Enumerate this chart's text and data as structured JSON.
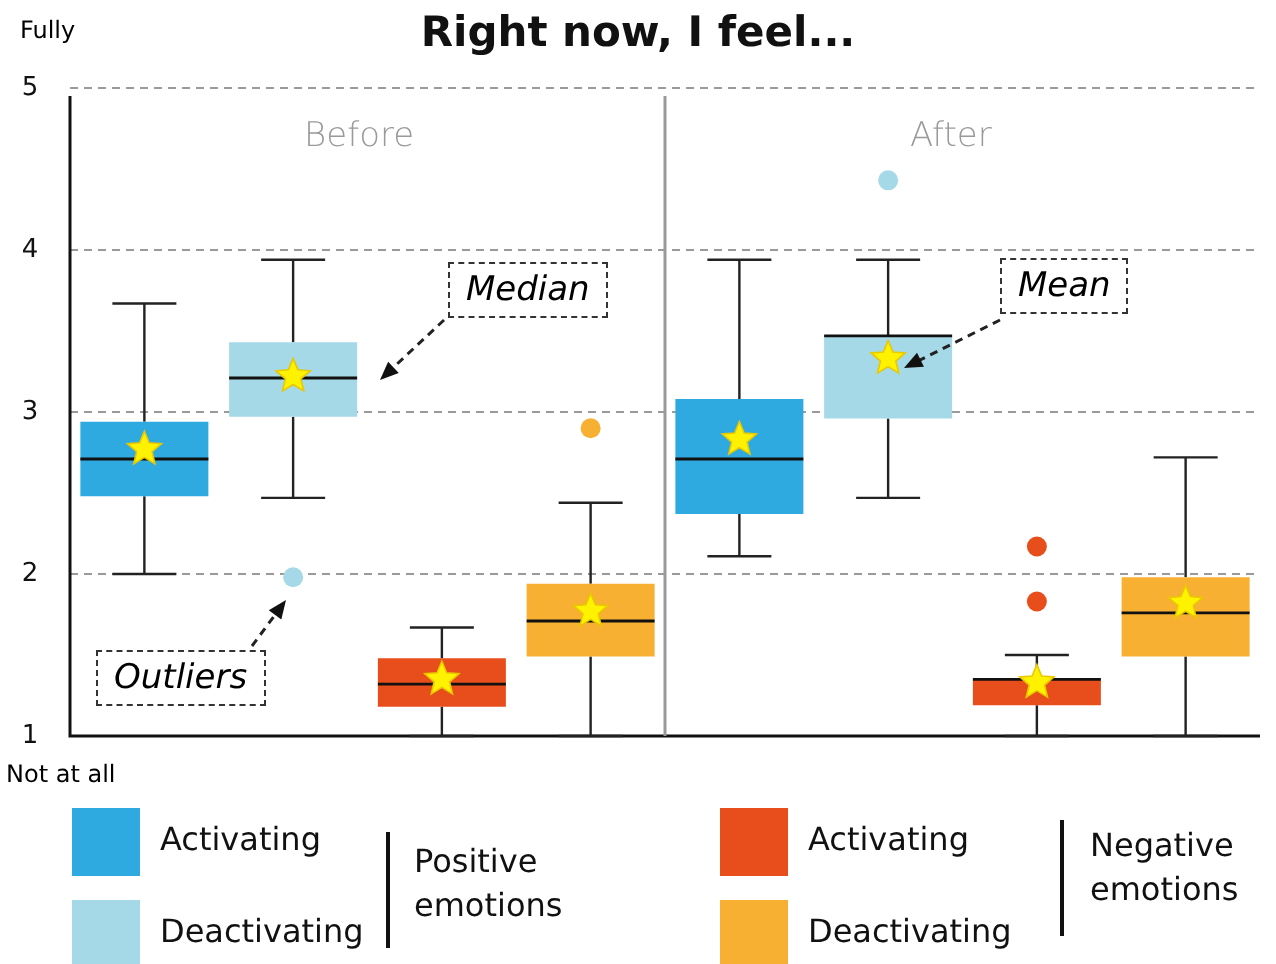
{
  "chart_data": {
    "type": "box",
    "title": "Right now, I feel...",
    "categories": [
      null,
      null,
      null,
      null,
      null,
      null,
      null,
      null
    ],
    "ylim": [
      1,
      5
    ],
    "yticks": [
      1,
      2,
      3,
      4,
      5
    ],
    "grid": "y",
    "legend": "bottom",
    "tick_labels": "y",
    "marker": "star",
    "annotations": [
      "Before",
      "After",
      "Fully",
      "Not at all",
      "Median",
      "Outliers",
      "Mean",
      "Positive emotions",
      "Negative emotions"
    ],
    "series": [
      {
        "name": "Activating",
        "color": "#2eaae1",
        "boxes": [
          {
            "low": 2.0,
            "q1": 2.48,
            "median": 2.71,
            "q3": 2.94,
            "high": 3.67,
            "mean": 2.77
          },
          null,
          null,
          null,
          {
            "low": 2.11,
            "q1": 2.37,
            "median": 2.71,
            "q3": 3.08,
            "high": 3.94,
            "mean": 2.83
          },
          null,
          null,
          null
        ]
      },
      {
        "name": "Deactivating",
        "color": "#a6d9e7",
        "boxes": [
          null,
          {
            "low": 2.47,
            "q1": 2.97,
            "median": 3.21,
            "q3": 3.43,
            "high": 3.94,
            "mean": 3.22,
            "outliers": [
              1.98
            ]
          },
          null,
          null,
          null,
          {
            "low": 2.47,
            "q1": 2.96,
            "median": 3.47,
            "q3": 3.47,
            "high": 3.94,
            "mean": 3.33,
            "outliers": [
              4.43
            ]
          },
          null,
          null
        ]
      },
      {
        "name": "Activating",
        "color": "#e84e1b",
        "boxes": [
          null,
          null,
          {
            "low": 1.0,
            "q1": 1.18,
            "median": 1.32,
            "q3": 1.48,
            "high": 1.67,
            "mean": 1.35
          },
          null,
          null,
          null,
          {
            "low": 1.0,
            "q1": 1.19,
            "median": 1.35,
            "q3": 1.35,
            "high": 1.5,
            "mean": 1.33,
            "outliers": [
              2.17,
              1.83
            ]
          },
          null
        ]
      },
      {
        "name": "Deactivating",
        "color": "#f8b032",
        "boxes": [
          null,
          null,
          null,
          {
            "low": 1.0,
            "q1": 1.49,
            "median": 1.71,
            "q3": 1.94,
            "high": 2.44,
            "mean": 1.77,
            "outliers": [
              2.9
            ]
          },
          null,
          null,
          null,
          {
            "low": 1.0,
            "q1": 1.49,
            "median": 1.76,
            "q3": 1.98,
            "high": 2.72,
            "mean": 1.82
          }
        ]
      }
    ]
  }
}
